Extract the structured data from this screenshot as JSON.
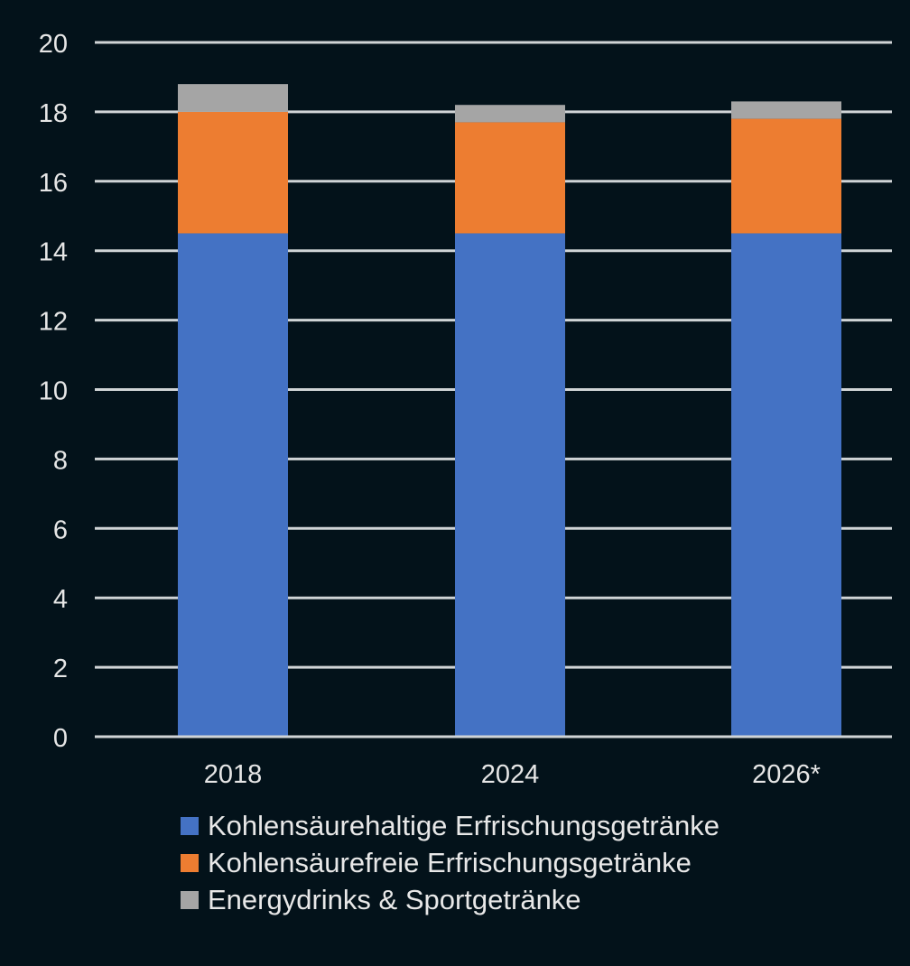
{
  "chart_data": {
    "type": "bar",
    "stacked": true,
    "categories": [
      "2018",
      "2024",
      "2026*"
    ],
    "series": [
      {
        "name": "Kohlensäurehaltige Erfrischungsgetränke",
        "values": [
          14.5,
          14.5,
          14.5
        ],
        "color": "#4472c4"
      },
      {
        "name": "Kohlensäurefreie Erfrischungsgetränke",
        "values": [
          3.5,
          3.2,
          3.3
        ],
        "color": "#ed7d31"
      },
      {
        "name": "Energydrinks & Sportgetränke",
        "values": [
          0.8,
          0.5,
          0.5
        ],
        "color": "#a5a5a5"
      }
    ],
    "ylim": [
      0,
      20
    ],
    "yticks": [
      "0",
      "2",
      "4",
      "6",
      "8",
      "10",
      "12",
      "14",
      "16",
      "18",
      "20"
    ],
    "grid": true,
    "legend": "bottom",
    "background": "#03121a"
  }
}
